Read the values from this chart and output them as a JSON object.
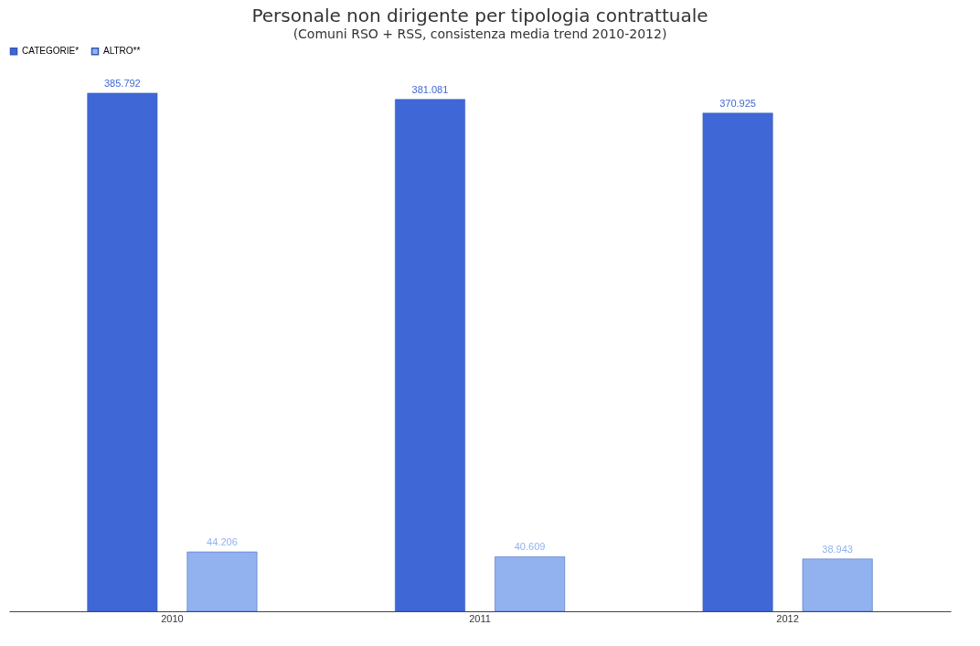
{
  "chart_data": {
    "type": "bar",
    "title": "Personale non dirigente per tipologia contrattuale",
    "subtitle": "(Comuni RSO + RSS, consistenza media trend 2010-2012)",
    "categories": [
      "2010",
      "2011",
      "2012"
    ],
    "series": [
      {
        "name": "CATEGORIE*",
        "color": "#3f68d6",
        "values": [
          385792,
          381081,
          370925
        ],
        "value_labels": [
          "385.792",
          "381.081",
          "370.925"
        ]
      },
      {
        "name": "ALTRO**",
        "color": "#92b2ef",
        "values": [
          44206,
          40609,
          38943
        ],
        "value_labels": [
          "44.206",
          "40.609",
          "38.943"
        ]
      }
    ],
    "legend": "top",
    "grid": false
  }
}
